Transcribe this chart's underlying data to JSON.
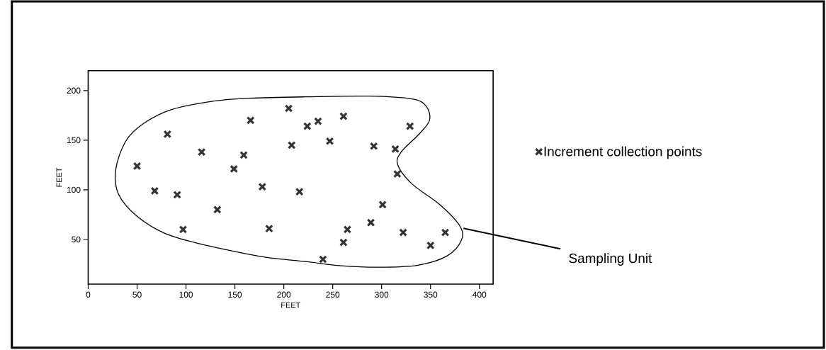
{
  "chart_data": {
    "type": "scatter",
    "xlabel": "FEET",
    "ylabel": "FEET",
    "legend": "right",
    "xlim": [
      0,
      414
    ],
    "ylim": [
      5,
      220
    ],
    "xticks": [
      0,
      50,
      100,
      150,
      200,
      250,
      300,
      350,
      400
    ],
    "yticks": [
      50,
      100,
      150,
      200
    ],
    "annotations": [
      "Sampling Unit"
    ],
    "series": [
      {
        "name": "Increment collection points",
        "marker": "cross",
        "color": "#333333",
        "x": [
          50,
          68,
          91,
          97,
          81,
          116,
          132,
          149,
          159,
          166,
          178,
          185,
          205,
          208,
          216,
          224,
          235,
          247,
          261,
          240,
          261,
          265,
          289,
          301,
          292,
          314,
          316,
          329,
          322,
          350,
          365
        ],
        "values": [
          124,
          99,
          95,
          60,
          156,
          138,
          80,
          121,
          135,
          170,
          103,
          61,
          182,
          145,
          98,
          164,
          169,
          149,
          174,
          30,
          47,
          60,
          67,
          85,
          144,
          141,
          116,
          164,
          57,
          44,
          57
        ]
      }
    ]
  }
}
